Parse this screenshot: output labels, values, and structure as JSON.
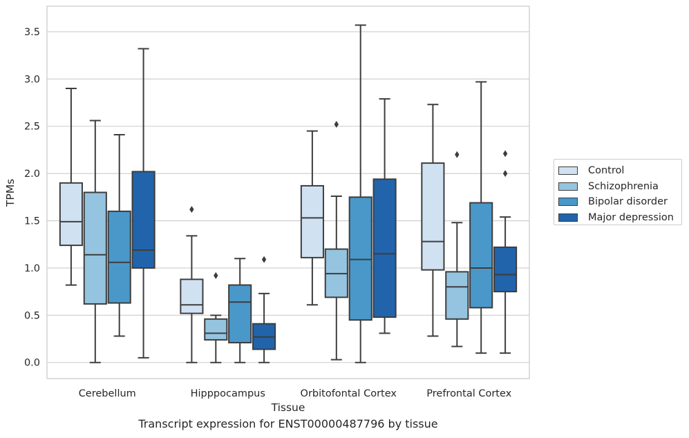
{
  "chart_data": {
    "type": "box",
    "xlabel": "Tissue",
    "ylabel": "TPMs",
    "caption": "Transcript expression for ENST00000487796 by tissue",
    "ylim": [
      -0.17,
      3.77
    ],
    "yticks": [
      "0.0",
      "0.5",
      "1.0",
      "1.5",
      "2.0",
      "2.5",
      "3.0",
      "3.5"
    ],
    "ytick_values": [
      0.0,
      0.5,
      1.0,
      1.5,
      2.0,
      2.5,
      3.0,
      3.5
    ],
    "grid": "horizontal",
    "legend_position": "outside-right",
    "categories": [
      "Cerebellum",
      "Hipppocampus",
      "Orbitofontal Cortex",
      "Prefrontal Cortex"
    ],
    "series": [
      {
        "name": "Control",
        "color": "#d0e1f2",
        "boxes": [
          {
            "whisker_low": 0.82,
            "q1": 1.24,
            "median": 1.49,
            "q3": 1.9,
            "whisker_high": 2.9,
            "outliers": []
          },
          {
            "whisker_low": 0.0,
            "q1": 0.52,
            "median": 0.61,
            "q3": 0.88,
            "whisker_high": 1.34,
            "outliers": [
              1.62
            ]
          },
          {
            "whisker_low": 0.61,
            "q1": 1.11,
            "median": 1.53,
            "q3": 1.87,
            "whisker_high": 2.45,
            "outliers": []
          },
          {
            "whisker_low": 0.28,
            "q1": 0.98,
            "median": 1.28,
            "q3": 2.11,
            "whisker_high": 2.73,
            "outliers": []
          }
        ]
      },
      {
        "name": "Schizophrenia",
        "color": "#94c4df",
        "boxes": [
          {
            "whisker_low": 0.0,
            "q1": 0.62,
            "median": 1.14,
            "q3": 1.8,
            "whisker_high": 2.56,
            "outliers": []
          },
          {
            "whisker_low": 0.0,
            "q1": 0.24,
            "median": 0.31,
            "q3": 0.46,
            "whisker_high": 0.5,
            "outliers": [
              0.92
            ]
          },
          {
            "whisker_low": 0.03,
            "q1": 0.69,
            "median": 0.94,
            "q3": 1.2,
            "whisker_high": 1.76,
            "outliers": [
              2.52
            ]
          },
          {
            "whisker_low": 0.17,
            "q1": 0.46,
            "median": 0.8,
            "q3": 0.96,
            "whisker_high": 1.48,
            "outliers": [
              2.2
            ]
          }
        ]
      },
      {
        "name": "Bipolar disorder",
        "color": "#4a98c9",
        "boxes": [
          {
            "whisker_low": 0.28,
            "q1": 0.63,
            "median": 1.06,
            "q3": 1.6,
            "whisker_high": 2.41,
            "outliers": []
          },
          {
            "whisker_low": 0.0,
            "q1": 0.21,
            "median": 0.64,
            "q3": 0.82,
            "whisker_high": 1.1,
            "outliers": []
          },
          {
            "whisker_low": 0.0,
            "q1": 0.45,
            "median": 1.09,
            "q3": 1.75,
            "whisker_high": 3.57,
            "outliers": []
          },
          {
            "whisker_low": 0.1,
            "q1": 0.58,
            "median": 1.0,
            "q3": 1.69,
            "whisker_high": 2.97,
            "outliers": []
          }
        ]
      },
      {
        "name": "Major depression",
        "color": "#2164ab",
        "boxes": [
          {
            "whisker_low": 0.05,
            "q1": 1.0,
            "median": 1.19,
            "q3": 2.02,
            "whisker_high": 3.32,
            "outliers": []
          },
          {
            "whisker_low": 0.0,
            "q1": 0.14,
            "median": 0.27,
            "q3": 0.41,
            "whisker_high": 0.73,
            "outliers": [
              1.09
            ]
          },
          {
            "whisker_low": 0.31,
            "q1": 0.48,
            "median": 1.15,
            "q3": 1.94,
            "whisker_high": 2.79,
            "outliers": []
          },
          {
            "whisker_low": 0.1,
            "q1": 0.75,
            "median": 0.93,
            "q3": 1.22,
            "whisker_high": 1.54,
            "outliers": [
              2.0,
              2.21
            ]
          }
        ]
      }
    ]
  }
}
